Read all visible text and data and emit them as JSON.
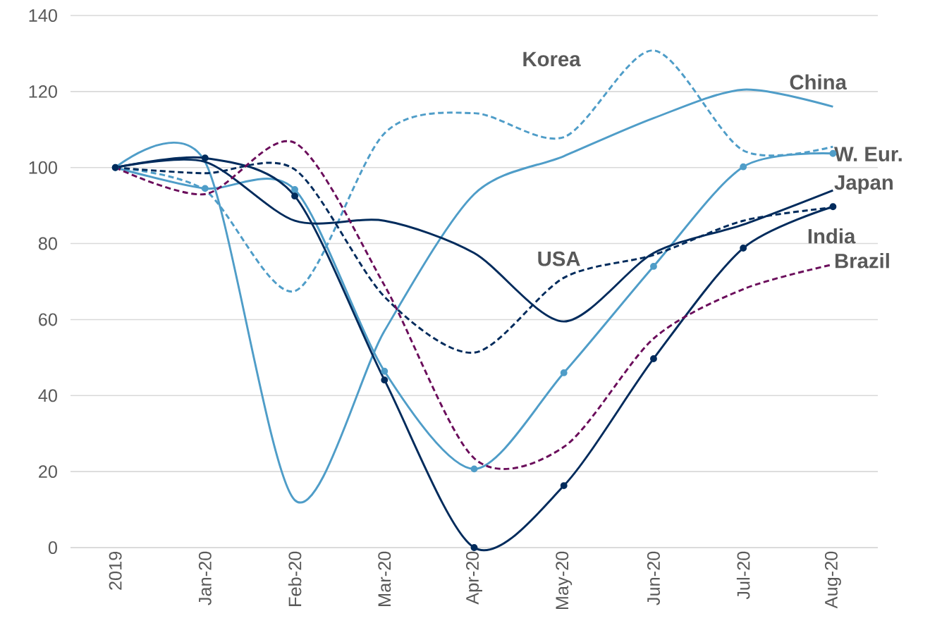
{
  "chart_data": {
    "type": "line",
    "categories": [
      "2019",
      "Jan-20",
      "Feb-20",
      "Mar-20",
      "Apr-20",
      "May-20",
      "Jun-20",
      "Jul-20",
      "Aug-20"
    ],
    "ylim": [
      0,
      140
    ],
    "yticks": [
      0,
      20,
      40,
      60,
      80,
      100,
      120,
      140
    ],
    "grid": "y",
    "series": [
      {
        "name": "Korea",
        "color": "#4f9dc8",
        "line_style": "dashed",
        "marker": "none",
        "values": [
          100,
          94,
          67.5,
          109,
          114.3,
          108,
          130.8,
          104.5,
          105.5
        ]
      },
      {
        "name": "China",
        "color": "#4f9dc8",
        "line_style": "solid",
        "marker": "none",
        "values": [
          100,
          101.5,
          12.5,
          57,
          93,
          103,
          113,
          120.5,
          116
        ]
      },
      {
        "name": "W. Eur.",
        "color": "#4f9dc8",
        "line_style": "solid",
        "marker": "circle",
        "values": [
          100,
          94.5,
          94.2,
          46.4,
          20.7,
          46,
          74,
          100.2,
          103.7
        ]
      },
      {
        "name": "Japan",
        "color": "#002b5c",
        "line_style": "solid",
        "marker": "none",
        "values": [
          100,
          101.5,
          86,
          86,
          77.5,
          59.5,
          77.5,
          85,
          94
        ]
      },
      {
        "name": "India",
        "color": "#002b5c",
        "line_style": "solid",
        "marker": "circle",
        "values": [
          100,
          102.5,
          92.5,
          44.1,
          0,
          16.3,
          49.7,
          78.8,
          89.7
        ]
      },
      {
        "name": "USA",
        "color": "#002b5c",
        "line_style": "dashed",
        "marker": "none",
        "values": [
          100,
          98.5,
          99.5,
          66,
          51.3,
          71,
          77,
          86,
          89.5
        ]
      },
      {
        "name": "Brazil",
        "color": "#6b0d5b",
        "line_style": "dashed",
        "marker": "none",
        "values": [
          100,
          93,
          106.5,
          69,
          23.5,
          26.5,
          55,
          68,
          74.5
        ]
      }
    ]
  }
}
